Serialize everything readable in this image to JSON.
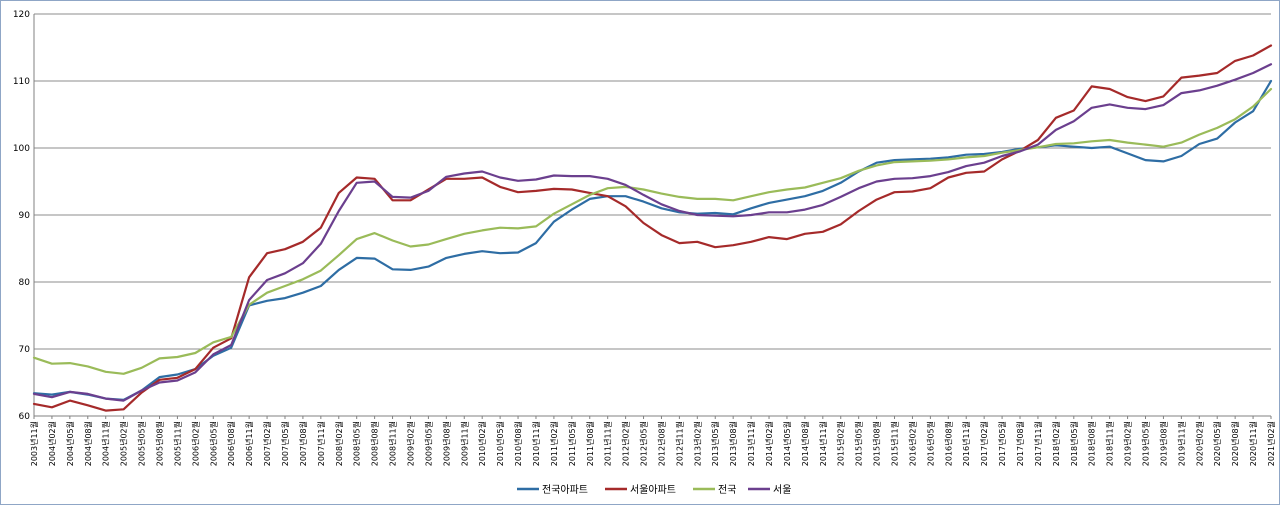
{
  "chart_data": {
    "type": "line",
    "title": "",
    "xlabel": "",
    "ylabel": "",
    "ylim": [
      60,
      120
    ],
    "yticks": [
      60,
      70,
      80,
      90,
      100,
      110,
      120
    ],
    "grid": "horizontal",
    "legend_position": "bottom",
    "x": [
      "2003년11월",
      "2004년02월",
      "2004년05월",
      "2004년08월",
      "2004년11월",
      "2005년02월",
      "2005년05월",
      "2005년08월",
      "2005년11월",
      "2006년02월",
      "2006년05월",
      "2006년08월",
      "2006년11월",
      "2007년02월",
      "2007년05월",
      "2007년08월",
      "2007년11월",
      "2008년02월",
      "2008년05월",
      "2008년08월",
      "2008년11월",
      "2009년02월",
      "2009년05월",
      "2009년08월",
      "2009년11월",
      "2010년02월",
      "2010년05월",
      "2010년08월",
      "2010년11월",
      "2011년02월",
      "2011년05월",
      "2011년08월",
      "2011년11월",
      "2012년02월",
      "2012년05월",
      "2012년08월",
      "2012년11월",
      "2013년02월",
      "2013년05월",
      "2013년08월",
      "2013년11월",
      "2014년02월",
      "2014년05월",
      "2014년08월",
      "2014년11월",
      "2015년02월",
      "2015년05월",
      "2015년08월",
      "2015년11월",
      "2016년02월",
      "2016년05월",
      "2016년08월",
      "2016년11월",
      "2017년02월",
      "2017년05월",
      "2017년08월",
      "2017년11월",
      "2018년02월",
      "2018년05월",
      "2018년08월",
      "2018년11월",
      "2019년02월",
      "2019년05월",
      "2019년08월",
      "2019년11월",
      "2020년02월",
      "2020년05월",
      "2020년08월",
      "2020년11월",
      "2021년02월"
    ],
    "series": [
      {
        "name": "전국아파트",
        "color": "#2e6da4",
        "values": [
          63.4,
          63.2,
          63.6,
          63.2,
          62.6,
          62.4,
          63.8,
          65.8,
          66.2,
          67.0,
          69.0,
          70.2,
          76.5,
          77.2,
          77.6,
          78.4,
          79.4,
          81.8,
          83.6,
          83.5,
          81.9,
          81.8,
          82.3,
          83.6,
          84.2,
          84.6,
          84.3,
          84.4,
          85.8,
          89.0,
          90.8,
          92.4,
          92.8,
          92.8,
          92.0,
          91.0,
          90.4,
          90.2,
          90.3,
          90.1,
          91.0,
          91.8,
          92.3,
          92.8,
          93.6,
          94.8,
          96.5,
          97.8,
          98.2,
          98.3,
          98.4,
          98.6,
          99.0,
          99.1,
          99.4,
          99.9,
          100.1,
          100.4,
          100.2,
          100.0,
          100.2,
          99.2,
          98.2,
          98.0,
          98.8,
          100.6,
          101.4,
          103.8,
          105.5,
          110.0
        ]
      },
      {
        "name": "서울아파트",
        "color": "#a52a2a",
        "values": [
          61.8,
          61.3,
          62.3,
          61.6,
          60.8,
          61.0,
          63.5,
          65.4,
          65.7,
          67.0,
          70.2,
          71.6,
          80.7,
          84.3,
          84.9,
          86.0,
          88.1,
          93.3,
          95.6,
          95.4,
          92.2,
          92.2,
          93.8,
          95.4,
          95.4,
          95.6,
          94.2,
          93.4,
          93.6,
          93.9,
          93.8,
          93.3,
          92.8,
          91.3,
          88.8,
          87.0,
          85.8,
          86.0,
          85.2,
          85.5,
          86.0,
          86.7,
          86.4,
          87.2,
          87.5,
          88.6,
          90.6,
          92.3,
          93.4,
          93.5,
          94.0,
          95.6,
          96.3,
          96.5,
          98.3,
          99.6,
          101.2,
          104.5,
          105.6,
          109.2,
          108.8,
          107.6,
          107.0,
          107.7,
          110.5,
          110.8,
          111.2,
          113.0,
          113.8,
          115.3
        ]
      },
      {
        "name": "전국",
        "color": "#9abb59",
        "values": [
          68.7,
          67.8,
          67.9,
          67.4,
          66.6,
          66.3,
          67.2,
          68.6,
          68.8,
          69.4,
          71.0,
          71.8,
          76.6,
          78.4,
          79.4,
          80.4,
          81.7,
          84.0,
          86.4,
          87.3,
          86.2,
          85.3,
          85.6,
          86.4,
          87.2,
          87.7,
          88.1,
          88.0,
          88.3,
          90.2,
          91.6,
          93.0,
          94.0,
          94.2,
          93.8,
          93.2,
          92.7,
          92.4,
          92.4,
          92.2,
          92.8,
          93.4,
          93.8,
          94.1,
          94.8,
          95.5,
          96.6,
          97.4,
          97.9,
          98.0,
          98.1,
          98.3,
          98.6,
          98.8,
          99.3,
          99.7,
          100.1,
          100.6,
          100.7,
          101.0,
          101.2,
          100.8,
          100.5,
          100.2,
          100.8,
          102.0,
          103.0,
          104.3,
          106.2,
          108.8
        ]
      },
      {
        "name": "서울",
        "color": "#6b3f8e",
        "values": [
          63.3,
          62.8,
          63.6,
          63.3,
          62.6,
          62.3,
          63.8,
          65.0,
          65.3,
          66.5,
          69.2,
          70.6,
          77.3,
          80.3,
          81.3,
          82.8,
          85.7,
          90.6,
          94.8,
          95.0,
          92.7,
          92.6,
          93.6,
          95.7,
          96.2,
          96.5,
          95.6,
          95.1,
          95.3,
          95.9,
          95.8,
          95.8,
          95.4,
          94.5,
          93.0,
          91.6,
          90.6,
          90.0,
          89.9,
          89.8,
          90.0,
          90.4,
          90.4,
          90.8,
          91.5,
          92.7,
          94.0,
          95.0,
          95.4,
          95.5,
          95.8,
          96.4,
          97.3,
          97.8,
          98.8,
          99.5,
          100.5,
          102.7,
          104.0,
          106.0,
          106.5,
          106.0,
          105.8,
          106.4,
          108.2,
          108.6,
          109.3,
          110.2,
          111.2,
          112.5
        ]
      }
    ]
  }
}
